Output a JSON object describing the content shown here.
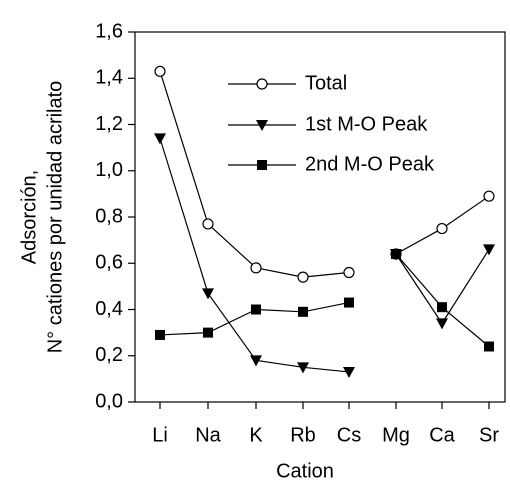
{
  "chart_data": {
    "type": "line",
    "xlabel": "Cation",
    "ylabel": [
      "Adsorción,",
      "N° cationes por unidad acrilato"
    ],
    "categories": [
      "Li",
      "Na",
      "K",
      "Rb",
      "Cs",
      "Mg",
      "Ca",
      "Sr"
    ],
    "line_breaks": [
      5
    ],
    "series": [
      {
        "name": "Total",
        "color": "#000000",
        "marker": "open-circle",
        "values": [
          1.43,
          0.77,
          0.58,
          0.54,
          0.56,
          0.64,
          0.75,
          0.89
        ]
      },
      {
        "name": "1st M-O Peak",
        "color": "#000000",
        "marker": "triangle-down",
        "values": [
          1.14,
          0.47,
          0.18,
          0.15,
          0.13,
          0.64,
          0.34,
          0.66
        ]
      },
      {
        "name": "2nd M-O Peak",
        "color": "#000000",
        "marker": "square",
        "values": [
          0.29,
          0.3,
          0.4,
          0.39,
          0.43,
          0.64,
          0.41,
          0.24
        ]
      }
    ],
    "ylim": [
      0,
      1.6
    ],
    "yticks": [
      {
        "value": 0,
        "label": "0,0"
      },
      {
        "value": 0.2,
        "label": "0,2"
      },
      {
        "value": 0.4,
        "label": "0,4"
      },
      {
        "value": 0.6,
        "label": "0,6"
      },
      {
        "value": 0.8,
        "label": "0,8"
      },
      {
        "value": 1.0,
        "label": "1,0"
      },
      {
        "value": 1.2,
        "label": "1,2"
      },
      {
        "value": 1.4,
        "label": "1,4"
      },
      {
        "value": 1.6,
        "label": "1,6"
      }
    ],
    "grid": false,
    "legend": "top-center"
  }
}
